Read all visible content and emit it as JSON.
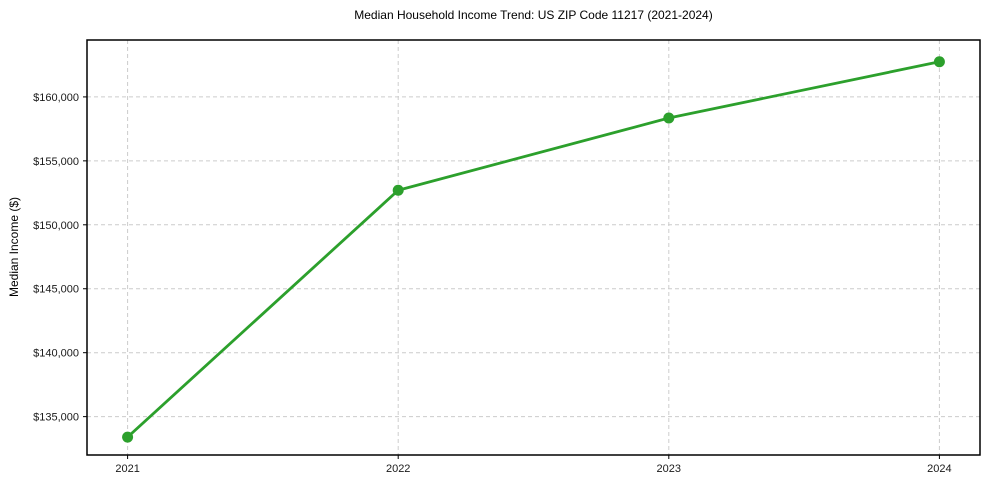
{
  "chart_data": {
    "type": "line",
    "title": "Median Household Income Trend: US ZIP Code 11217 (2021-2024)",
    "xlabel": "",
    "ylabel": "Median Income ($)",
    "x": [
      2021,
      2022,
      2023,
      2024
    ],
    "values": [
      133400,
      152700,
      158350,
      162750
    ],
    "xticks": [
      2021,
      2022,
      2023,
      2024
    ],
    "xtick_labels": [
      "2021",
      "2022",
      "2023",
      "2024"
    ],
    "yticks": [
      135000,
      140000,
      145000,
      150000,
      155000,
      160000
    ],
    "ytick_labels": [
      "$135,000",
      "$140,000",
      "$145,000",
      "$150,000",
      "$155,000",
      "$160,000"
    ],
    "xlim": [
      2020.85,
      2024.15
    ],
    "ylim": [
      132000,
      164450
    ],
    "grid": true,
    "grid_style": "dashed",
    "legend": false,
    "line_color": "#2ca02c",
    "marker_color": "#2ca02c",
    "grid_color": "#cccccc",
    "axis_color": "#000000",
    "background_color": "#ffffff"
  }
}
